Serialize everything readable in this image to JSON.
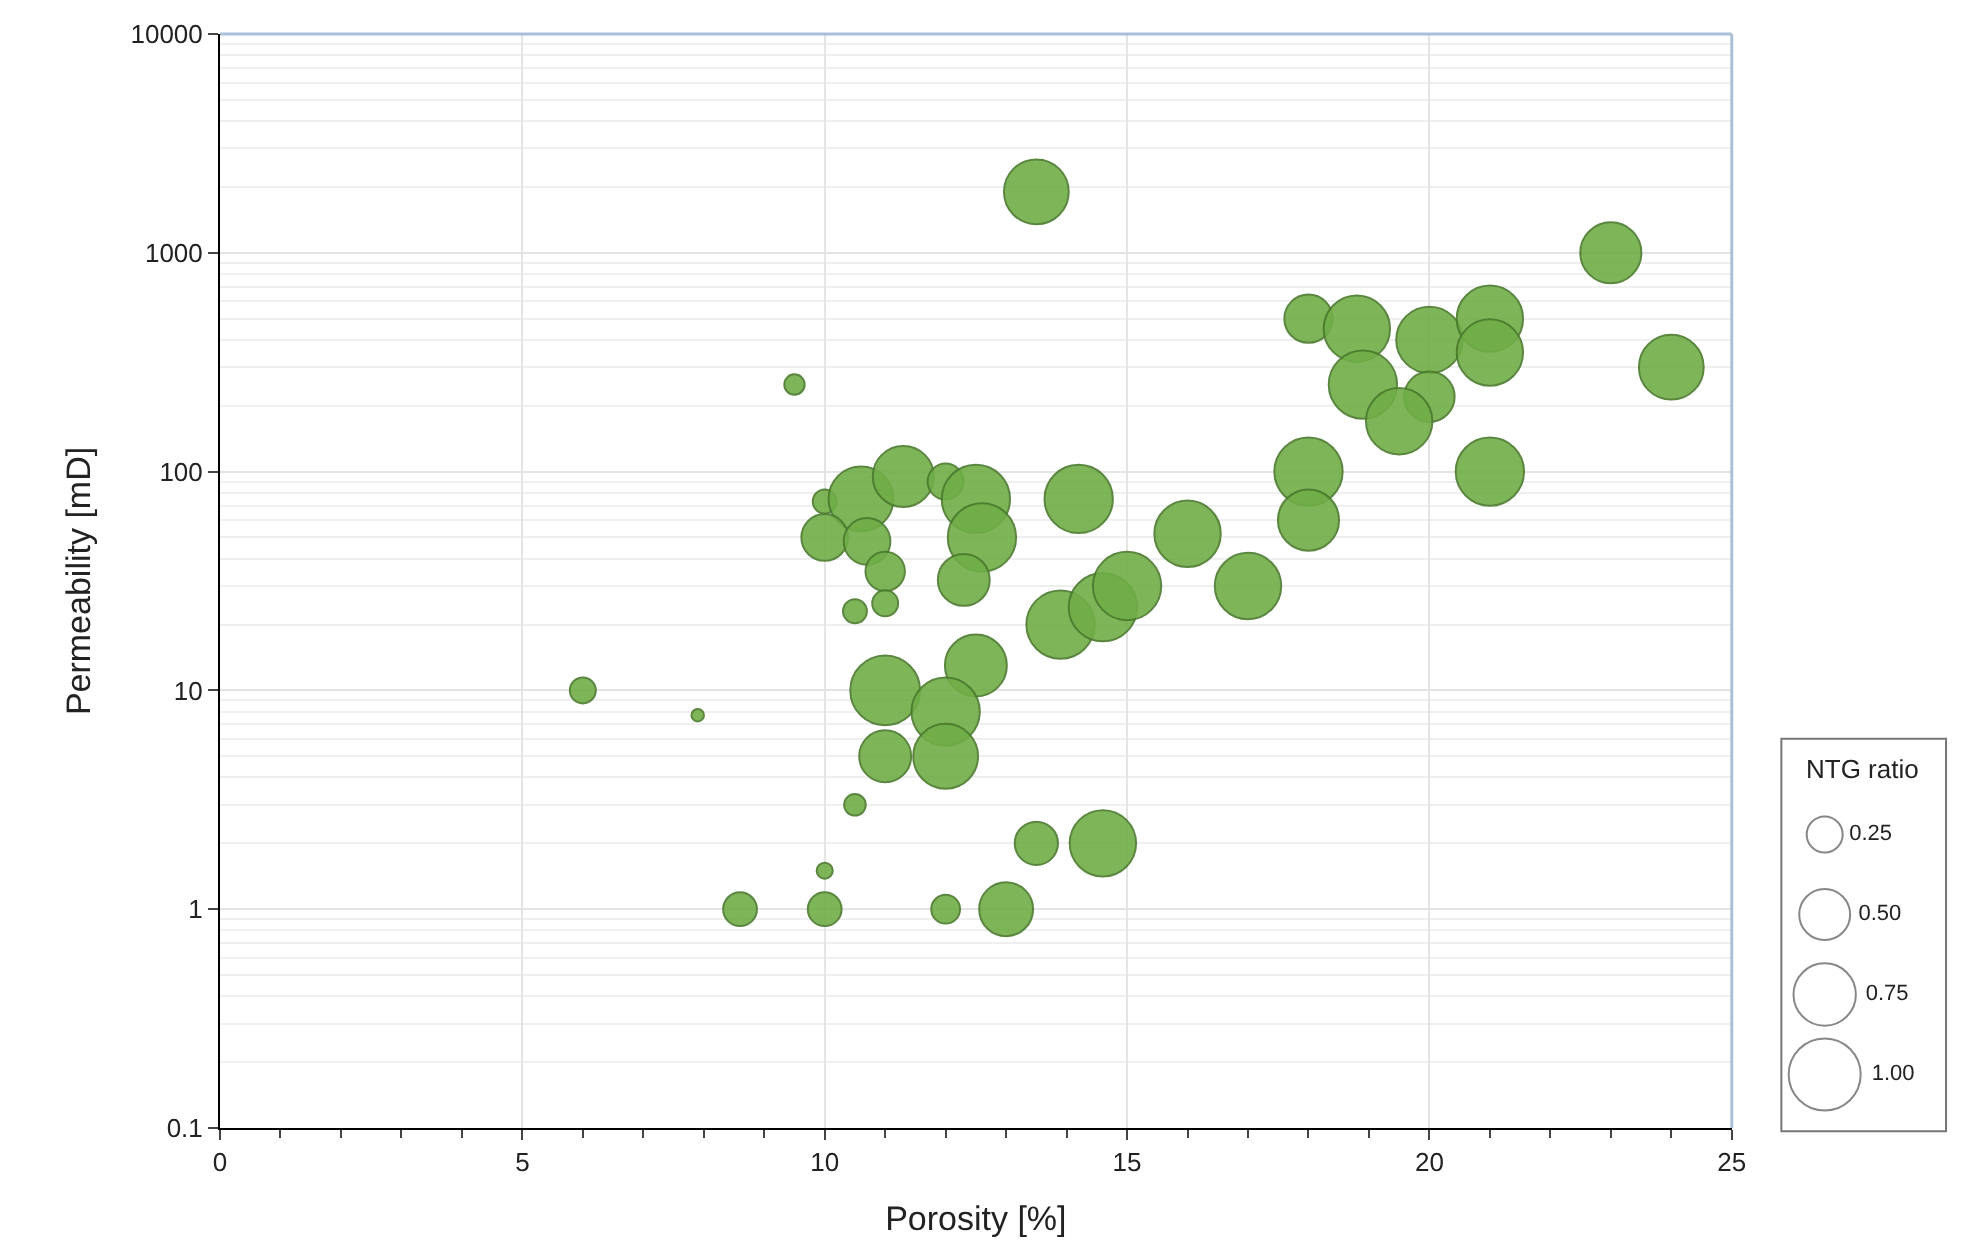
{
  "chart_data": {
    "type": "bubble",
    "xlabel": "Porosity [%]",
    "ylabel": "Permeability [mD]",
    "legend_title": "NTG ratio",
    "log": "y",
    "grid": true,
    "color": "#70ad47",
    "marker": "circle",
    "xlim": [
      0,
      25
    ],
    "xticks": [
      0,
      5,
      10,
      15,
      20,
      25
    ],
    "ylim": [
      0.1,
      10000
    ],
    "yticks": [
      0.1,
      1,
      10,
      100,
      1000,
      10000
    ],
    "size_legend": [
      {
        "value": 0.25,
        "label": "0.25"
      },
      {
        "value": 0.5,
        "label": "0.50"
      },
      {
        "value": 0.75,
        "label": "0.75"
      },
      {
        "value": 1.0,
        "label": "1.00"
      }
    ],
    "x": [
      13.5,
      9.5,
      10,
      10.6,
      11.3,
      12,
      12.5,
      12.6,
      10,
      10.7,
      11,
      10.5,
      11,
      12.3,
      14.2,
      13.9,
      14.6,
      15,
      16,
      17,
      12.5,
      11,
      12,
      11,
      12,
      6,
      7.9,
      10.5,
      10,
      8.6,
      10,
      12,
      13,
      13.5,
      14.6,
      18,
      18.8,
      20,
      21,
      21,
      18.9,
      20,
      19.5,
      18,
      18,
      21,
      23,
      24
    ],
    "values": [
      1900,
      250,
      73,
      75,
      95,
      90,
      75,
      50,
      50,
      48,
      35,
      23,
      25,
      32,
      75,
      20,
      24,
      30,
      52,
      30,
      13,
      10,
      8,
      5,
      5,
      10,
      7.7,
      3,
      1.5,
      1,
      1,
      1,
      1,
      2,
      2,
      500,
      450,
      400,
      500,
      350,
      250,
      220,
      170,
      100,
      60,
      100,
      1000,
      300
    ],
    "sizes": [
      0.81,
      0.08,
      0.11,
      0.81,
      0.72,
      0.25,
      0.9,
      0.9,
      0.42,
      0.42,
      0.3,
      0.11,
      0.13,
      0.52,
      0.9,
      0.9,
      0.9,
      0.9,
      0.85,
      0.85,
      0.74,
      0.94,
      0.9,
      0.52,
      0.81,
      0.13,
      0.03,
      0.09,
      0.05,
      0.22,
      0.22,
      0.16,
      0.56,
      0.36,
      0.85,
      0.45,
      0.85,
      0.85,
      0.85,
      0.85,
      0.9,
      0.49,
      0.85,
      0.9,
      0.72,
      0.9,
      0.72,
      0.81
    ]
  }
}
